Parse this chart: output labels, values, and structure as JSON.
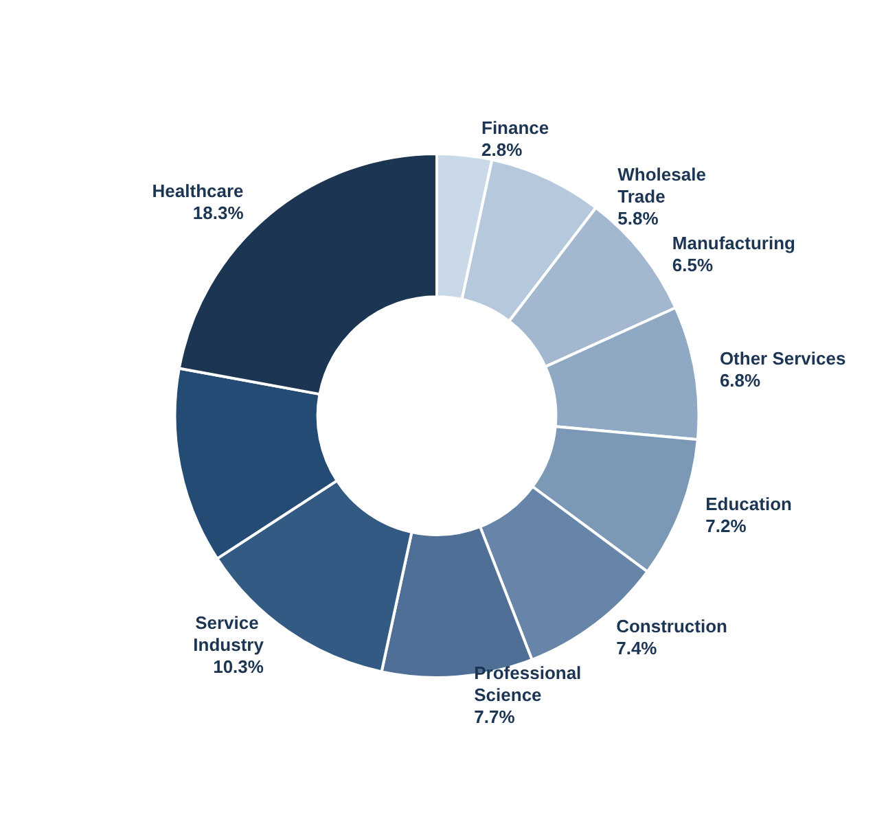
{
  "chart_data": {
    "type": "donut",
    "categories": [
      "Finance",
      "Wholesale Trade",
      "Manufacturing",
      "Other Services",
      "Education",
      "Construction",
      "Professional Science",
      "Service Industry",
      null,
      "Healthcare"
    ],
    "values": [
      2.8,
      5.8,
      6.5,
      6.8,
      7.2,
      7.4,
      7.7,
      10.3,
      10,
      18.3
    ],
    "value_labels": [
      "2.8%",
      "5.8%",
      "6.5%",
      "6.8%",
      "7.2%",
      "7.4%",
      "7.7%",
      "10.3%",
      null,
      "18.3%"
    ],
    "colors": [
      "#c9d9e8",
      "#b5c8dc",
      "#a3b8cf",
      "#8fa9c4",
      "#7b98b7",
      "#6685a8",
      "#4f6f96",
      "#325a82",
      "#234b73",
      "#1b3553"
    ],
    "legend": false
  }
}
